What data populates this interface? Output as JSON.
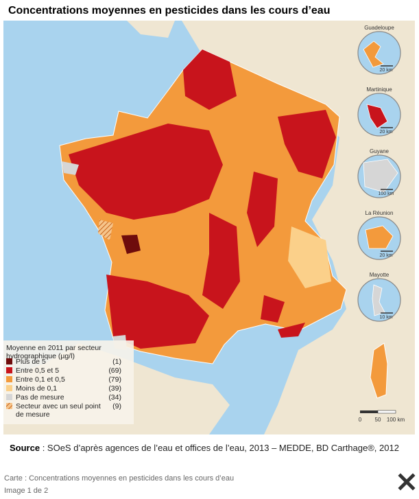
{
  "title": "Concentrations moyennes en pesticides dans les cours d’eau",
  "legend": {
    "title_lines": [
      "Moyenne en 2011 par secteur",
      "hydrographique (µg/l)"
    ],
    "items": [
      {
        "label": "Plus de 5",
        "count": "(1)",
        "color": "#6e0c0c"
      },
      {
        "label": "Entre 0,5 et 5",
        "count": "(69)",
        "color": "#c8141c"
      },
      {
        "label": "Entre 0,1 et 0,5",
        "count": "(79)",
        "color": "#f39a3c"
      },
      {
        "label": "Moins de 0,1",
        "count": "(39)",
        "color": "#fbd08a"
      },
      {
        "label": "Pas de mesure",
        "count": "(34)",
        "color": "#d6d6d6"
      },
      {
        "label": "Secteur avec un seul point de mesure",
        "count": "(9)",
        "color": "#e08a50",
        "pattern": "hatch"
      }
    ]
  },
  "insets": [
    {
      "name": "Guadeloupe",
      "scale": "20 km"
    },
    {
      "name": "Martinique",
      "scale": "20 km"
    },
    {
      "name": "Guyane",
      "scale": "100 km"
    },
    {
      "name": "La Réunion",
      "scale": "20 km"
    },
    {
      "name": "Mayotte",
      "scale": "10 km"
    }
  ],
  "scale_bar": [
    "0",
    "50",
    "100 km"
  ],
  "source": {
    "label": "Source",
    "text": " : SOeS d’après agences de l’eau et offices de l’eau, 2013 – MEDDE, BD Carthage®, 2012"
  },
  "caption": {
    "title": "Carte : Concentrations moyennes en pesticides dans les cours d’eau",
    "count": "Image 1 de 2"
  }
}
